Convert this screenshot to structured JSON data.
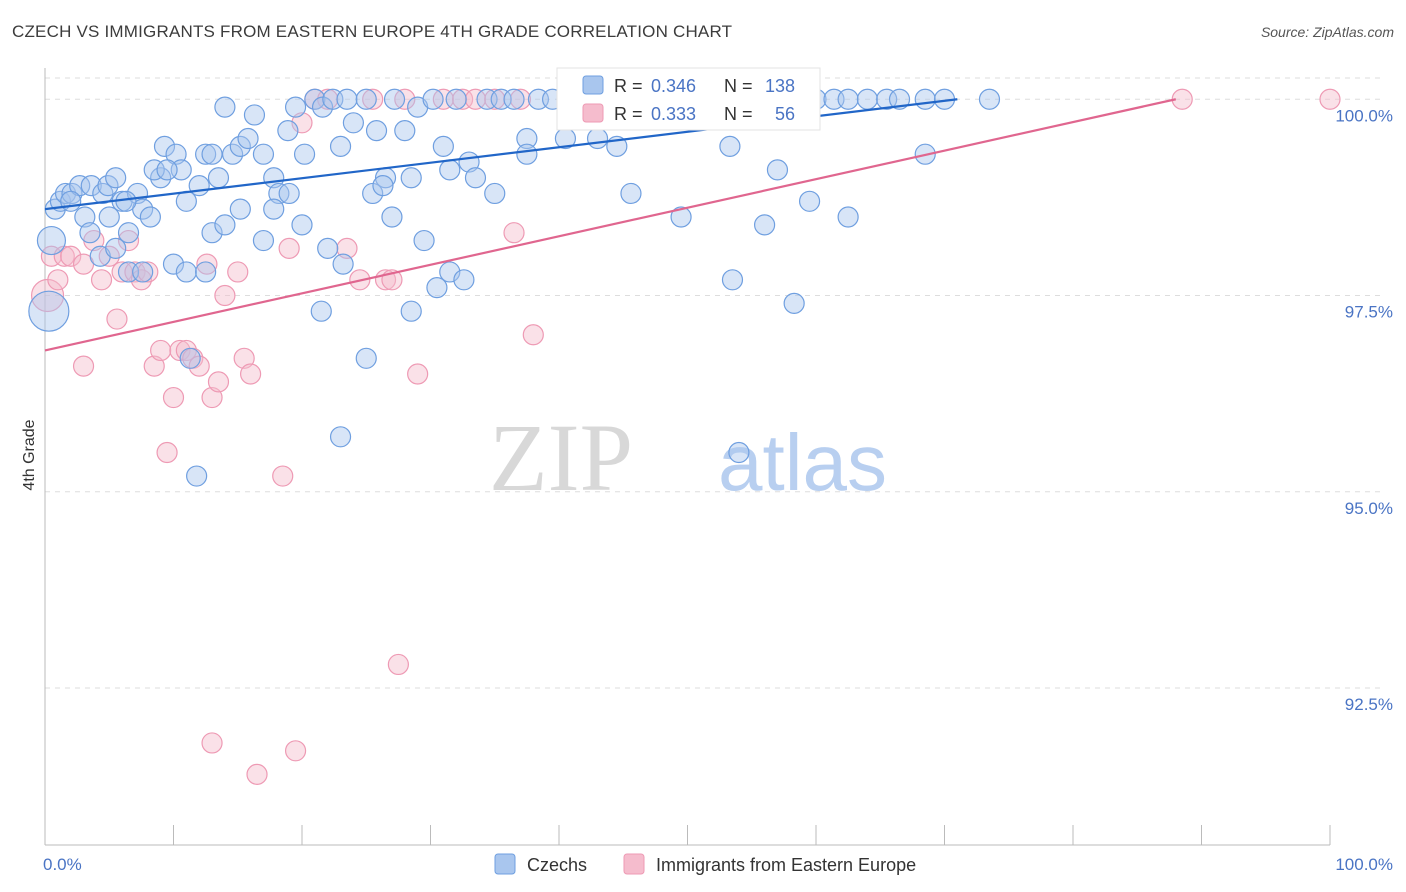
{
  "title": "CZECH VS IMMIGRANTS FROM EASTERN EUROPE 4TH GRADE CORRELATION CHART",
  "source": "Source: ZipAtlas.com",
  "watermark": {
    "part1": "ZIP",
    "part2": "atlas"
  },
  "colors": {
    "blue_fill": "#a9c6ee",
    "blue_stroke": "#6f9fe0",
    "blue_line": "#2166c8",
    "pink_fill": "#f5bccd",
    "pink_stroke": "#ee9ab4",
    "pink_line": "#e0668f",
    "grid": "#dddddd",
    "tick_text": "#4a74c4"
  },
  "legend_stats": [
    {
      "r_label": "R =",
      "r_value": "0.346",
      "n_label": "N =",
      "n_value": "138"
    },
    {
      "r_label": "R =",
      "r_value": "0.333",
      "n_label": "N =",
      "n_value": "56"
    }
  ],
  "chart_data": {
    "type": "scatter",
    "title": "CZECH VS IMMIGRANTS FROM EASTERN EUROPE 4TH GRADE CORRELATION CHART",
    "xlabel": "",
    "ylabel": "4th Grade",
    "xlim": [
      0,
      100
    ],
    "ylim": [
      90.5,
      100.5
    ],
    "x_tick_labels": [
      "0.0%",
      "100.0%"
    ],
    "y_ticks": [
      92.5,
      95.0,
      97.5,
      100.0
    ],
    "y_tick_labels": [
      "92.5%",
      "95.0%",
      "97.5%",
      "100.0%"
    ],
    "grid": "horizontal dashed",
    "legend_position": "bottom-center",
    "series": [
      {
        "name": "Czechs",
        "r": 0.346,
        "n": 138,
        "trend": {
          "x": [
            0,
            71
          ],
          "y": [
            98.6,
            100.0
          ]
        },
        "points": [
          [
            0.5,
            98.2,
            14
          ],
          [
            0.3,
            97.3,
            20
          ],
          [
            0.8,
            98.6,
            10
          ],
          [
            1.2,
            98.7,
            10
          ],
          [
            1.6,
            98.8,
            10
          ],
          [
            2.1,
            98.8,
            10
          ],
          [
            2.7,
            98.9,
            10
          ],
          [
            3.1,
            98.5,
            10
          ],
          [
            3.6,
            98.9,
            10
          ],
          [
            4.5,
            98.8,
            10
          ],
          [
            4.9,
            98.9,
            10
          ],
          [
            5.5,
            99.0,
            10
          ],
          [
            6.0,
            98.7,
            10
          ],
          [
            7.2,
            98.8,
            10
          ],
          [
            7.6,
            98.6,
            10
          ],
          [
            8.2,
            98.5,
            10
          ],
          [
            9.0,
            99.0,
            10
          ],
          [
            8.5,
            99.1,
            10
          ],
          [
            9.3,
            99.4,
            10
          ],
          [
            10.2,
            99.3,
            10
          ],
          [
            10.6,
            99.1,
            10
          ],
          [
            11.0,
            98.7,
            10
          ],
          [
            12.0,
            98.9,
            10
          ],
          [
            12.5,
            99.3,
            10
          ],
          [
            13.0,
            99.3,
            10
          ],
          [
            13.5,
            99.0,
            10
          ],
          [
            14.0,
            99.9,
            10
          ],
          [
            14.6,
            99.3,
            10
          ],
          [
            15.2,
            99.4,
            10
          ],
          [
            15.8,
            99.5,
            10
          ],
          [
            16.3,
            99.8,
            10
          ],
          [
            17.0,
            99.3,
            10
          ],
          [
            17.8,
            99.0,
            10
          ],
          [
            18.2,
            98.8,
            10
          ],
          [
            18.9,
            99.6,
            10
          ],
          [
            19.5,
            99.9,
            10
          ],
          [
            20.2,
            99.3,
            10
          ],
          [
            21.0,
            100.0,
            10
          ],
          [
            21.6,
            99.9,
            10
          ],
          [
            22.4,
            100.0,
            10
          ],
          [
            23.0,
            99.4,
            10
          ],
          [
            23.5,
            100.0,
            10
          ],
          [
            24.0,
            99.7,
            10
          ],
          [
            25.0,
            100.0,
            10
          ],
          [
            25.8,
            99.6,
            10
          ],
          [
            26.5,
            99.0,
            10
          ],
          [
            27.2,
            100.0,
            10
          ],
          [
            28.0,
            99.6,
            10
          ],
          [
            29.0,
            99.9,
            10
          ],
          [
            30.2,
            100.0,
            10
          ],
          [
            31.0,
            99.4,
            10
          ],
          [
            32.0,
            100.0,
            10
          ],
          [
            33.0,
            99.2,
            10
          ],
          [
            34.4,
            100.0,
            10
          ],
          [
            35.5,
            100.0,
            10
          ],
          [
            36.5,
            100.0,
            10
          ],
          [
            37.5,
            99.5,
            10
          ],
          [
            38.4,
            100.0,
            10
          ],
          [
            39.5,
            100.0,
            10
          ],
          [
            40.5,
            99.5,
            10
          ],
          [
            41.5,
            100.0,
            10
          ],
          [
            42.4,
            100.0,
            10
          ],
          [
            43.3,
            100.0,
            10
          ],
          [
            44.0,
            100.0,
            10
          ],
          [
            45.0,
            100.0,
            10
          ],
          [
            46.5,
            100.0,
            10
          ],
          [
            47.6,
            100.0,
            10
          ],
          [
            48.5,
            100.0,
            10
          ],
          [
            50.0,
            100.0,
            10
          ],
          [
            51.5,
            100.0,
            10
          ],
          [
            52.5,
            100.0,
            10
          ],
          [
            53.3,
            99.4,
            10
          ],
          [
            55.0,
            100.0,
            10
          ],
          [
            56.0,
            100.0,
            10
          ],
          [
            57.5,
            100.0,
            10
          ],
          [
            58.5,
            100.0,
            10
          ],
          [
            60.0,
            100.0,
            10
          ],
          [
            61.4,
            100.0,
            10
          ],
          [
            62.5,
            100.0,
            10
          ],
          [
            64.0,
            100.0,
            10
          ],
          [
            65.5,
            100.0,
            10
          ],
          [
            66.5,
            100.0,
            10
          ],
          [
            68.5,
            100.0,
            10
          ],
          [
            70.0,
            100.0,
            10
          ],
          [
            73.5,
            100.0,
            10
          ],
          [
            56.0,
            98.4,
            10
          ],
          [
            57.0,
            99.1,
            10
          ],
          [
            35.0,
            98.8,
            10
          ],
          [
            37.5,
            99.3,
            10
          ],
          [
            43.0,
            99.5,
            10
          ],
          [
            44.5,
            99.4,
            10
          ],
          [
            45.6,
            98.8,
            10
          ],
          [
            49.5,
            98.5,
            10
          ],
          [
            59.5,
            98.7,
            10
          ],
          [
            62.5,
            98.5,
            10
          ],
          [
            68.5,
            99.3,
            10
          ],
          [
            48.5,
            100.0,
            10
          ],
          [
            3.5,
            98.3,
            10
          ],
          [
            4.3,
            98.0,
            10
          ],
          [
            5.5,
            98.1,
            10
          ],
          [
            6.5,
            98.3,
            10
          ],
          [
            6.5,
            97.8,
            10
          ],
          [
            7.6,
            97.8,
            10
          ],
          [
            10.0,
            97.9,
            10
          ],
          [
            11.0,
            97.8,
            10
          ],
          [
            12.5,
            97.8,
            10
          ],
          [
            13.0,
            98.3,
            10
          ],
          [
            14.0,
            98.4,
            10
          ],
          [
            15.2,
            98.6,
            10
          ],
          [
            17.0,
            98.2,
            10
          ],
          [
            17.8,
            98.6,
            10
          ],
          [
            19.0,
            98.8,
            10
          ],
          [
            20.0,
            98.4,
            10
          ],
          [
            21.5,
            97.3,
            10
          ],
          [
            22.0,
            98.1,
            10
          ],
          [
            23.2,
            97.9,
            10
          ],
          [
            25.5,
            98.8,
            10
          ],
          [
            27.0,
            98.5,
            10
          ],
          [
            28.5,
            97.3,
            10
          ],
          [
            29.5,
            98.2,
            10
          ],
          [
            30.5,
            97.6,
            10
          ],
          [
            31.5,
            97.8,
            10
          ],
          [
            32.6,
            97.7,
            10
          ],
          [
            25.0,
            96.7,
            10
          ],
          [
            23.0,
            95.7,
            10
          ],
          [
            11.3,
            96.7,
            10
          ],
          [
            11.8,
            95.2,
            10
          ],
          [
            54.0,
            95.5,
            10
          ],
          [
            53.5,
            97.7,
            10
          ],
          [
            58.3,
            97.4,
            10
          ],
          [
            33.5,
            99.0,
            10
          ],
          [
            31.5,
            99.1,
            10
          ],
          [
            28.5,
            99.0,
            10
          ],
          [
            26.3,
            98.9,
            10
          ],
          [
            5.0,
            98.5,
            10
          ],
          [
            9.5,
            99.1,
            10
          ],
          [
            2.0,
            98.7,
            10
          ],
          [
            6.3,
            98.7,
            10
          ]
        ]
      },
      {
        "name": "Immigrants from Eastern Europe",
        "r": 0.333,
        "n": 56,
        "trend": {
          "x": [
            0,
            88
          ],
          "y": [
            96.8,
            100.0
          ]
        },
        "points": [
          [
            0.2,
            97.5,
            16
          ],
          [
            0.5,
            98.0,
            10
          ],
          [
            1.0,
            97.7,
            10
          ],
          [
            1.5,
            98.0,
            10
          ],
          [
            2.0,
            98.0,
            10
          ],
          [
            3.0,
            97.9,
            10
          ],
          [
            3.8,
            98.2,
            10
          ],
          [
            4.4,
            97.7,
            10
          ],
          [
            5.0,
            98.0,
            10
          ],
          [
            5.6,
            97.2,
            10
          ],
          [
            6.0,
            97.8,
            10
          ],
          [
            6.5,
            98.2,
            10
          ],
          [
            7.0,
            97.8,
            10
          ],
          [
            7.5,
            97.7,
            10
          ],
          [
            8.0,
            97.8,
            10
          ],
          [
            3.0,
            96.6,
            10
          ],
          [
            8.5,
            96.6,
            10
          ],
          [
            9.0,
            96.8,
            10
          ],
          [
            9.5,
            95.5,
            10
          ],
          [
            10.0,
            96.2,
            10
          ],
          [
            10.5,
            96.8,
            10
          ],
          [
            11.0,
            96.8,
            10
          ],
          [
            11.5,
            96.7,
            10
          ],
          [
            12.0,
            96.6,
            10
          ],
          [
            12.6,
            97.9,
            10
          ],
          [
            13.0,
            96.2,
            10
          ],
          [
            13.5,
            96.4,
            10
          ],
          [
            14.0,
            97.5,
            10
          ],
          [
            15.0,
            97.8,
            10
          ],
          [
            15.5,
            96.7,
            10
          ],
          [
            16.0,
            96.5,
            10
          ],
          [
            18.5,
            95.2,
            10
          ],
          [
            19.0,
            98.1,
            10
          ],
          [
            20.0,
            99.7,
            10
          ],
          [
            21.0,
            100.0,
            10
          ],
          [
            22.0,
            100.0,
            10
          ],
          [
            23.5,
            98.1,
            10
          ],
          [
            24.5,
            97.7,
            10
          ],
          [
            25.5,
            100.0,
            10
          ],
          [
            26.5,
            97.7,
            10
          ],
          [
            27.0,
            97.7,
            10
          ],
          [
            28.0,
            100.0,
            10
          ],
          [
            29.0,
            96.5,
            10
          ],
          [
            31.0,
            100.0,
            10
          ],
          [
            32.5,
            100.0,
            10
          ],
          [
            33.5,
            100.0,
            10
          ],
          [
            35.0,
            100.0,
            10
          ],
          [
            36.5,
            98.3,
            10
          ],
          [
            37.0,
            100.0,
            10
          ],
          [
            38.0,
            97.0,
            10
          ],
          [
            88.5,
            100.0,
            10
          ],
          [
            100.0,
            100.0,
            10
          ],
          [
            13.0,
            91.8,
            10
          ],
          [
            16.5,
            91.4,
            10
          ],
          [
            19.5,
            91.7,
            10
          ],
          [
            27.5,
            92.8,
            10
          ]
        ]
      }
    ]
  },
  "legend": {
    "series": [
      {
        "label": "Czechs"
      },
      {
        "label": "Immigrants from Eastern Europe"
      }
    ]
  }
}
